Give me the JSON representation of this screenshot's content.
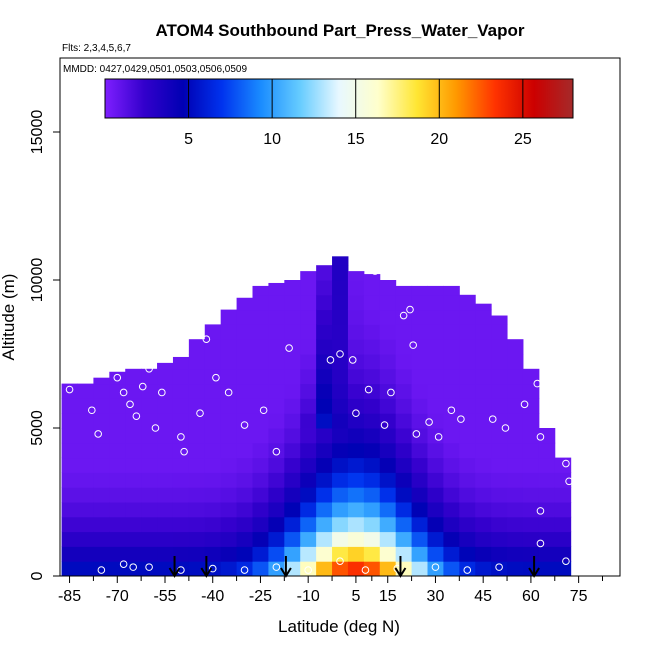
{
  "chart_data": {
    "type": "heatmap",
    "title": "ATOM4 Southbound Part_Press_Water_Vapor",
    "flights_note": "Flts: 2,3,4,5,6,7",
    "dates_note": "MMDD: 0427,0429,0501,0503,0506,0509",
    "xlabel": "Latitude (deg N)",
    "ylabel": "Altitude (m)",
    "xlim": [
      -88,
      88
    ],
    "ylim": [
      0,
      17500
    ],
    "x_ticks": [
      -85,
      -70,
      -55,
      -40,
      -25,
      -10,
      5,
      15,
      30,
      45,
      60,
      75
    ],
    "x_minor_ticks": [
      -77.5,
      -62.5,
      -47.5,
      -32.5,
      -17.5,
      -2.5,
      10,
      22.5,
      37.5,
      52.5,
      67.5,
      82.5
    ],
    "y_ticks": [
      0,
      5000,
      10000,
      15000
    ],
    "colorbar": {
      "min": 0,
      "max": 28,
      "ticks": [
        5,
        10,
        15,
        20,
        25
      ],
      "colors": [
        "#7f1fff",
        "#3300cc",
        "#0000b3",
        "#0033ee",
        "#1a8cff",
        "#66ccff",
        "#e8f8ff",
        "#ffffcc",
        "#ffe633",
        "#ff9900",
        "#ff3300",
        "#cc0000",
        "#a52a2a"
      ]
    },
    "field_description_series": {
      "name": "",
      "latitude_bins": [
        -85,
        -80,
        -75,
        -70,
        -65,
        -60,
        -55,
        -50,
        -45,
        -40,
        -35,
        -30,
        -25,
        -20,
        -15,
        -10,
        -5,
        0,
        5,
        10,
        15,
        20,
        25,
        30,
        35,
        40,
        45,
        50,
        55,
        60,
        65,
        70
      ],
      "top_altitude_m": [
        6500,
        6500,
        6700,
        6900,
        7000,
        7000,
        7200,
        7400,
        8000,
        8500,
        9000,
        9400,
        9800,
        9900,
        10000,
        10300,
        10500,
        10800,
        10300,
        10200,
        10000,
        9800,
        9800,
        9800,
        9800,
        9500,
        9200,
        8800,
        8000,
        7000,
        5000,
        4000
      ]
    },
    "profile_arrows_lat": [
      -52,
      -42,
      -17,
      19,
      61
    ],
    "sample_points": [
      {
        "lat": -85,
        "alt": 6300
      },
      {
        "lat": -78,
        "alt": 5600
      },
      {
        "lat": -76,
        "alt": 4800
      },
      {
        "lat": -70,
        "alt": 6700
      },
      {
        "lat": -68,
        "alt": 6200
      },
      {
        "lat": -66,
        "alt": 5800
      },
      {
        "lat": -64,
        "alt": 5400
      },
      {
        "lat": -62,
        "alt": 6400
      },
      {
        "lat": -60,
        "alt": 7000
      },
      {
        "lat": -58,
        "alt": 5000
      },
      {
        "lat": -56,
        "alt": 6200
      },
      {
        "lat": -50,
        "alt": 4700
      },
      {
        "lat": -49,
        "alt": 4200
      },
      {
        "lat": -44,
        "alt": 5500
      },
      {
        "lat": -42,
        "alt": 8000
      },
      {
        "lat": -39,
        "alt": 6700
      },
      {
        "lat": -35,
        "alt": 6200
      },
      {
        "lat": -30,
        "alt": 5100
      },
      {
        "lat": -24,
        "alt": 5600
      },
      {
        "lat": -20,
        "alt": 4200
      },
      {
        "lat": -16,
        "alt": 7700
      },
      {
        "lat": -3,
        "alt": 7300
      },
      {
        "lat": 0,
        "alt": 7500
      },
      {
        "lat": 4,
        "alt": 7300
      },
      {
        "lat": 5,
        "alt": 5500
      },
      {
        "lat": 9,
        "alt": 6300
      },
      {
        "lat": 11,
        "alt": 10300
      },
      {
        "lat": 14,
        "alt": 5100
      },
      {
        "lat": 16,
        "alt": 6200
      },
      {
        "lat": 20,
        "alt": 8800
      },
      {
        "lat": 22,
        "alt": 9000
      },
      {
        "lat": 23,
        "alt": 7800
      },
      {
        "lat": 24,
        "alt": 4800
      },
      {
        "lat": 28,
        "alt": 5200
      },
      {
        "lat": 31,
        "alt": 4700
      },
      {
        "lat": 35,
        "alt": 5600
      },
      {
        "lat": 38,
        "alt": 5300
      },
      {
        "lat": 45,
        "alt": 9600
      },
      {
        "lat": 48,
        "alt": 5300
      },
      {
        "lat": 52,
        "alt": 5000
      },
      {
        "lat": 54,
        "alt": 9800
      },
      {
        "lat": 58,
        "alt": 5800
      },
      {
        "lat": 60,
        "alt": 9700
      },
      {
        "lat": 62,
        "alt": 6500
      },
      {
        "lat": 63,
        "alt": 4700
      },
      {
        "lat": 64,
        "alt": 8500
      },
      {
        "lat": 67,
        "alt": 8300
      },
      {
        "lat": 70,
        "alt": 6500
      },
      {
        "lat": 71,
        "alt": 5200
      },
      {
        "lat": 71,
        "alt": 3800
      },
      {
        "lat": 72,
        "alt": 3200
      },
      {
        "lat": 63,
        "alt": 2200
      },
      {
        "lat": 63,
        "alt": 1100
      },
      {
        "lat": 71,
        "alt": 500
      },
      {
        "lat": -75,
        "alt": 200
      },
      {
        "lat": -68,
        "alt": 400
      },
      {
        "lat": -65,
        "alt": 300
      },
      {
        "lat": -60,
        "alt": 300
      },
      {
        "lat": -50,
        "alt": 200
      },
      {
        "lat": -40,
        "alt": 250
      },
      {
        "lat": -30,
        "alt": 200
      },
      {
        "lat": -20,
        "alt": 300
      },
      {
        "lat": -10,
        "alt": 200
      },
      {
        "lat": 0,
        "alt": 500
      },
      {
        "lat": 8,
        "alt": 200
      },
      {
        "lat": 18,
        "alt": 250
      },
      {
        "lat": 30,
        "alt": 300
      },
      {
        "lat": 40,
        "alt": 200
      },
      {
        "lat": 50,
        "alt": 300
      }
    ]
  }
}
